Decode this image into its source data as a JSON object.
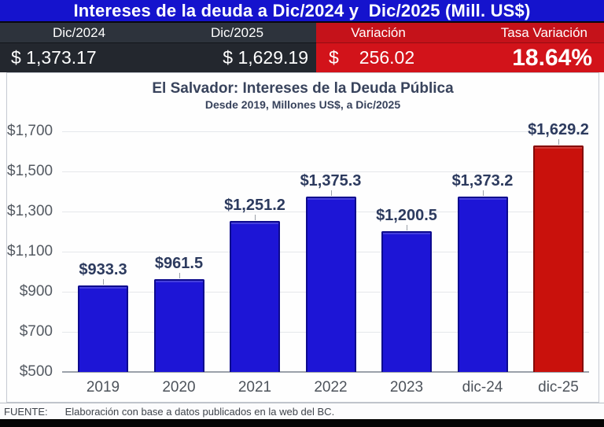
{
  "header": {
    "title": "Intereses de la deuda a Dic/2024 y  Dic/2025 (Mill. US$)",
    "columns": [
      {
        "label": "Dic/2024",
        "value": "$ 1,373.17"
      },
      {
        "label": "Dic/2025",
        "value": "$ 1,629.19"
      },
      {
        "label": "Variación",
        "currency": "$",
        "value": "256.02"
      },
      {
        "label": "Tasa Variación",
        "value": "18.64%"
      }
    ],
    "colors": {
      "title_bg": "#1513cd",
      "dark_header_bg": "#2d333c",
      "dark_value_bg": "#23272e",
      "red_header_bg": "#c5121a",
      "red_value_bg": "#d2131a"
    }
  },
  "chart_data": {
    "type": "bar",
    "title": "El Salvador: Intereses de la Deuda Pública",
    "subtitle": "Desde 2019, Millones US$, a Dic/2025",
    "categories": [
      "2019",
      "2020",
      "2021",
      "2022",
      "2023",
      "dic-24",
      "dic-25"
    ],
    "values": [
      933.3,
      961.5,
      1251.2,
      1375.3,
      1200.5,
      1373.2,
      1629.2
    ],
    "value_labels": [
      "$933.3",
      "$961.5",
      "$1,251.2",
      "$1,375.3",
      "$1,200.5",
      "$1,373.2",
      "$1,629.2"
    ],
    "bar_fills": [
      "#1d15d6",
      "#1d15d6",
      "#1d15d6",
      "#1d15d6",
      "#1d15d6",
      "#1d15d6",
      "#c9110c"
    ],
    "bar_borders": [
      "#0d0a8e",
      "#0d0a8e",
      "#0d0a8e",
      "#0d0a8e",
      "#0d0a8e",
      "#0d0a8e",
      "#850a07"
    ],
    "xlabel": "",
    "ylabel": "",
    "ylim": [
      500,
      1700
    ],
    "ytick_step": 200,
    "ytick_labels": [
      "$500",
      "$700",
      "$900",
      "$1,100",
      "$1,300",
      "$1,500",
      "$1,700"
    ],
    "grid": true,
    "legend": "none"
  },
  "footer": {
    "source_label": "FUENTE:",
    "source_text": "Elaboración con base a datos publicados en la web del BC."
  }
}
